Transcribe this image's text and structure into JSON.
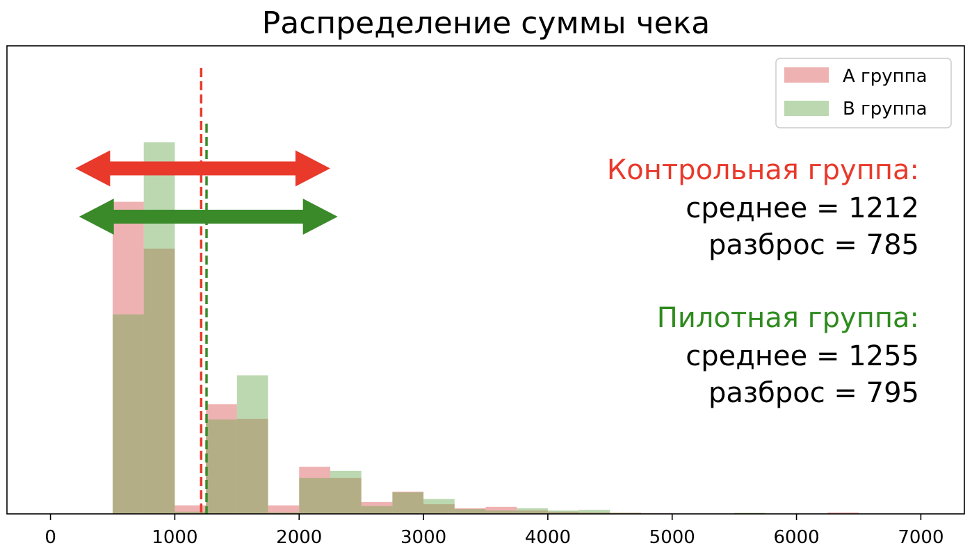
{
  "chart_data": {
    "type": "bar",
    "title": "Распределение суммы чека",
    "xlabel": "",
    "ylabel": "",
    "xlim": [
      -350,
      7350
    ],
    "ylim": [
      0,
      1.0
    ],
    "grid": false,
    "legend_position": "top-right",
    "x_ticks": [
      0,
      1000,
      2000,
      3000,
      4000,
      5000,
      6000,
      7000
    ],
    "x_tick_labels": [
      "0",
      "1000",
      "2000",
      "3000",
      "4000",
      "5000",
      "6000",
      "7000"
    ],
    "y_ticks_visible": false,
    "bin_width": 250,
    "series": [
      {
        "name": "A группа",
        "color": "#e06666",
        "opacity": 0.5,
        "bins": [
          {
            "x0": 500,
            "x1": 750,
            "value": 0.84
          },
          {
            "x0": 750,
            "x1": 1000,
            "value": 0.714
          },
          {
            "x0": 1000,
            "x1": 1250,
            "value": 0.023
          },
          {
            "x0": 1250,
            "x1": 1500,
            "value": 0.295
          },
          {
            "x0": 1500,
            "x1": 1750,
            "value": 0.256
          },
          {
            "x0": 1750,
            "x1": 2000,
            "value": 0.023
          },
          {
            "x0": 2000,
            "x1": 2250,
            "value": 0.127
          },
          {
            "x0": 2250,
            "x1": 2500,
            "value": 0.097
          },
          {
            "x0": 2500,
            "x1": 2750,
            "value": 0.032
          },
          {
            "x0": 2750,
            "x1": 3000,
            "value": 0.06
          },
          {
            "x0": 3000,
            "x1": 3250,
            "value": 0.026
          },
          {
            "x0": 3250,
            "x1": 3500,
            "value": 0.015
          },
          {
            "x0": 3500,
            "x1": 3750,
            "value": 0.019
          },
          {
            "x0": 3750,
            "x1": 4000,
            "value": 0.009
          },
          {
            "x0": 4000,
            "x1": 4250,
            "value": 0.006
          },
          {
            "x0": 4250,
            "x1": 4500,
            "value": 0.004
          },
          {
            "x0": 4500,
            "x1": 4750,
            "value": 0.003
          },
          {
            "x0": 4750,
            "x1": 5000,
            "value": 0.002
          },
          {
            "x0": 5500,
            "x1": 5750,
            "value": 0.002
          },
          {
            "x0": 6250,
            "x1": 6500,
            "value": 0.004
          }
        ]
      },
      {
        "name": "B группа",
        "color": "#6aa84f",
        "opacity": 0.45,
        "bins": [
          {
            "x0": 500,
            "x1": 750,
            "value": 0.537
          },
          {
            "x0": 750,
            "x1": 1000,
            "value": 1.0
          },
          {
            "x0": 1000,
            "x1": 1250,
            "value": 0.006
          },
          {
            "x0": 1250,
            "x1": 1500,
            "value": 0.254
          },
          {
            "x0": 1500,
            "x1": 1750,
            "value": 0.373
          },
          {
            "x0": 1750,
            "x1": 2000,
            "value": 0.004
          },
          {
            "x0": 2000,
            "x1": 2250,
            "value": 0.097
          },
          {
            "x0": 2250,
            "x1": 2500,
            "value": 0.116
          },
          {
            "x0": 2500,
            "x1": 2750,
            "value": 0.021
          },
          {
            "x0": 2750,
            "x1": 3000,
            "value": 0.058
          },
          {
            "x0": 3000,
            "x1": 3250,
            "value": 0.04
          },
          {
            "x0": 3250,
            "x1": 3500,
            "value": 0.013
          },
          {
            "x0": 3500,
            "x1": 3750,
            "value": 0.009
          },
          {
            "x0": 3750,
            "x1": 4000,
            "value": 0.015
          },
          {
            "x0": 4000,
            "x1": 4250,
            "value": 0.009
          },
          {
            "x0": 4250,
            "x1": 4500,
            "value": 0.011
          },
          {
            "x0": 4500,
            "x1": 4750,
            "value": 0.003
          },
          {
            "x0": 5500,
            "x1": 5750,
            "value": 0.003
          }
        ]
      }
    ],
    "mean_lines": [
      {
        "group": "control",
        "x": 1212,
        "color": "#e8392b",
        "style": "dashed"
      },
      {
        "group": "pilot",
        "x": 1255,
        "color": "#3a8a2a",
        "style": "dashed"
      }
    ],
    "spread_arrows": [
      {
        "group": "control",
        "x_from": 200,
        "x_to": 2250,
        "level": 0.93,
        "color": "#e8392b"
      },
      {
        "group": "pilot",
        "x_from": 230,
        "x_to": 2310,
        "level": 0.8,
        "color": "#3a8a2a"
      }
    ],
    "annotations": {
      "control": {
        "heading": "Контрольная группа:",
        "heading_color": "#e8392b",
        "mean_text": "среднее = 1212",
        "spread_text": "разброс = 785"
      },
      "pilot": {
        "heading": "Пилотная группа:",
        "heading_color": "#2e8b1e",
        "mean_text": "среднее = 1255",
        "spread_text": "разброс = 795"
      }
    },
    "legend": [
      {
        "label": "A группа",
        "color": "#e06666",
        "opacity": 0.5
      },
      {
        "label": "B группа",
        "color": "#6aa84f",
        "opacity": 0.45
      }
    ]
  }
}
